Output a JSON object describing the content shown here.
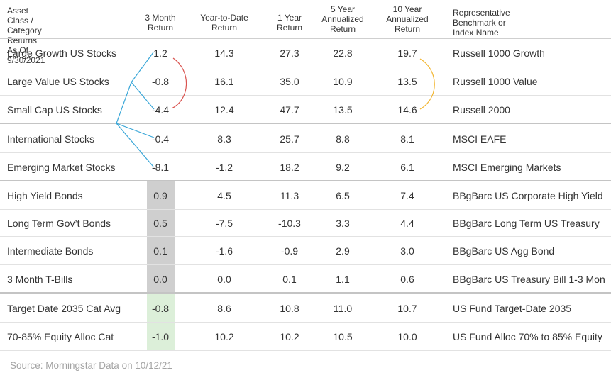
{
  "header": {
    "asset_class": [
      "Asset Class /",
      "Category Returns",
      "As Of 9/30/2021"
    ],
    "three_month": [
      "3 Month",
      "Return"
    ],
    "ytd": [
      "Year-to-Date",
      "Return"
    ],
    "one_year": [
      "1 Year",
      "Return"
    ],
    "five_year": [
      "5 Year",
      "Annualized",
      "Return"
    ],
    "ten_year": [
      "10 Year",
      "Annualized",
      "Return"
    ],
    "benchmark": [
      "Representative Benchmark or",
      "Index Name"
    ]
  },
  "rows": [
    {
      "name": "Large Growth US Stocks",
      "m3": "1.2",
      "ytd": "14.3",
      "y1": "27.3",
      "y5": "22.8",
      "y10": "19.7",
      "bench": "Russell 1000 Growth"
    },
    {
      "name": "Large Value US Stocks",
      "m3": "-0.8",
      "ytd": "16.1",
      "y1": "35.0",
      "y5": "10.9",
      "y10": "13.5",
      "bench": "Russell 1000 Value"
    },
    {
      "name": "Small Cap US Stocks",
      "m3": "-4.4",
      "ytd": "12.4",
      "y1": "47.7",
      "y5": "13.5",
      "y10": "14.6",
      "bench": "Russell 2000"
    },
    {
      "name": "International Stocks",
      "m3": "-0.4",
      "ytd": "8.3",
      "y1": "25.7",
      "y5": "8.8",
      "y10": "8.1",
      "bench": "MSCI EAFE"
    },
    {
      "name": "Emerging Market Stocks",
      "m3": "-8.1",
      "ytd": "-1.2",
      "y1": "18.2",
      "y5": "9.2",
      "y10": "6.1",
      "bench": "MSCI Emerging Markets"
    },
    {
      "name": "High Yield Bonds",
      "m3": "0.9",
      "ytd": "4.5",
      "y1": "11.3",
      "y5": "6.5",
      "y10": "7.4",
      "bench": "BBgBarc US Corporate High Yield"
    },
    {
      "name": "Long Term Gov’t Bonds",
      "m3": "0.5",
      "ytd": "-7.5",
      "y1": "-10.3",
      "y5": "3.3",
      "y10": "4.4",
      "bench": "BBgBarc Long Term US Treasury"
    },
    {
      "name": "Intermediate Bonds",
      "m3": "0.1",
      "ytd": "-1.6",
      "y1": "-0.9",
      "y5": "2.9",
      "y10": "3.0",
      "bench": "BBgBarc US Agg Bond"
    },
    {
      "name": "3 Month T-Bills",
      "m3": "0.0",
      "ytd": "0.0",
      "y1": "0.1",
      "y5": "1.1",
      "y10": "0.6",
      "bench": "BBgBarc US Treasury Bill 1-3 Mon"
    },
    {
      "name": "Target Date 2035 Cat Avg",
      "m3": "-0.8",
      "ytd": "8.6",
      "y1": "10.8",
      "y5": "11.0",
      "y10": "10.7",
      "bench": "US Fund Target-Date 2035"
    },
    {
      "name": "70-85% Equity Alloc Cat",
      "m3": "-1.0",
      "ytd": "10.2",
      "y1": "10.2",
      "y5": "10.5",
      "y10": "10.0",
      "bench": "US Fund Alloc 70% to 85% Equity"
    }
  ],
  "colors": {
    "bond_highlight": "#cfcfcf",
    "allocation_highlight": "#dcefd9",
    "blue_bracket": "#3aa7d8",
    "red_arc": "#d9534f",
    "gold_arc": "#f2b632",
    "separator": "#e2e2e2",
    "group_separator": "#c4c4c4"
  },
  "footer": {
    "source": "Source: Morningstar Data on 10/12/21"
  }
}
